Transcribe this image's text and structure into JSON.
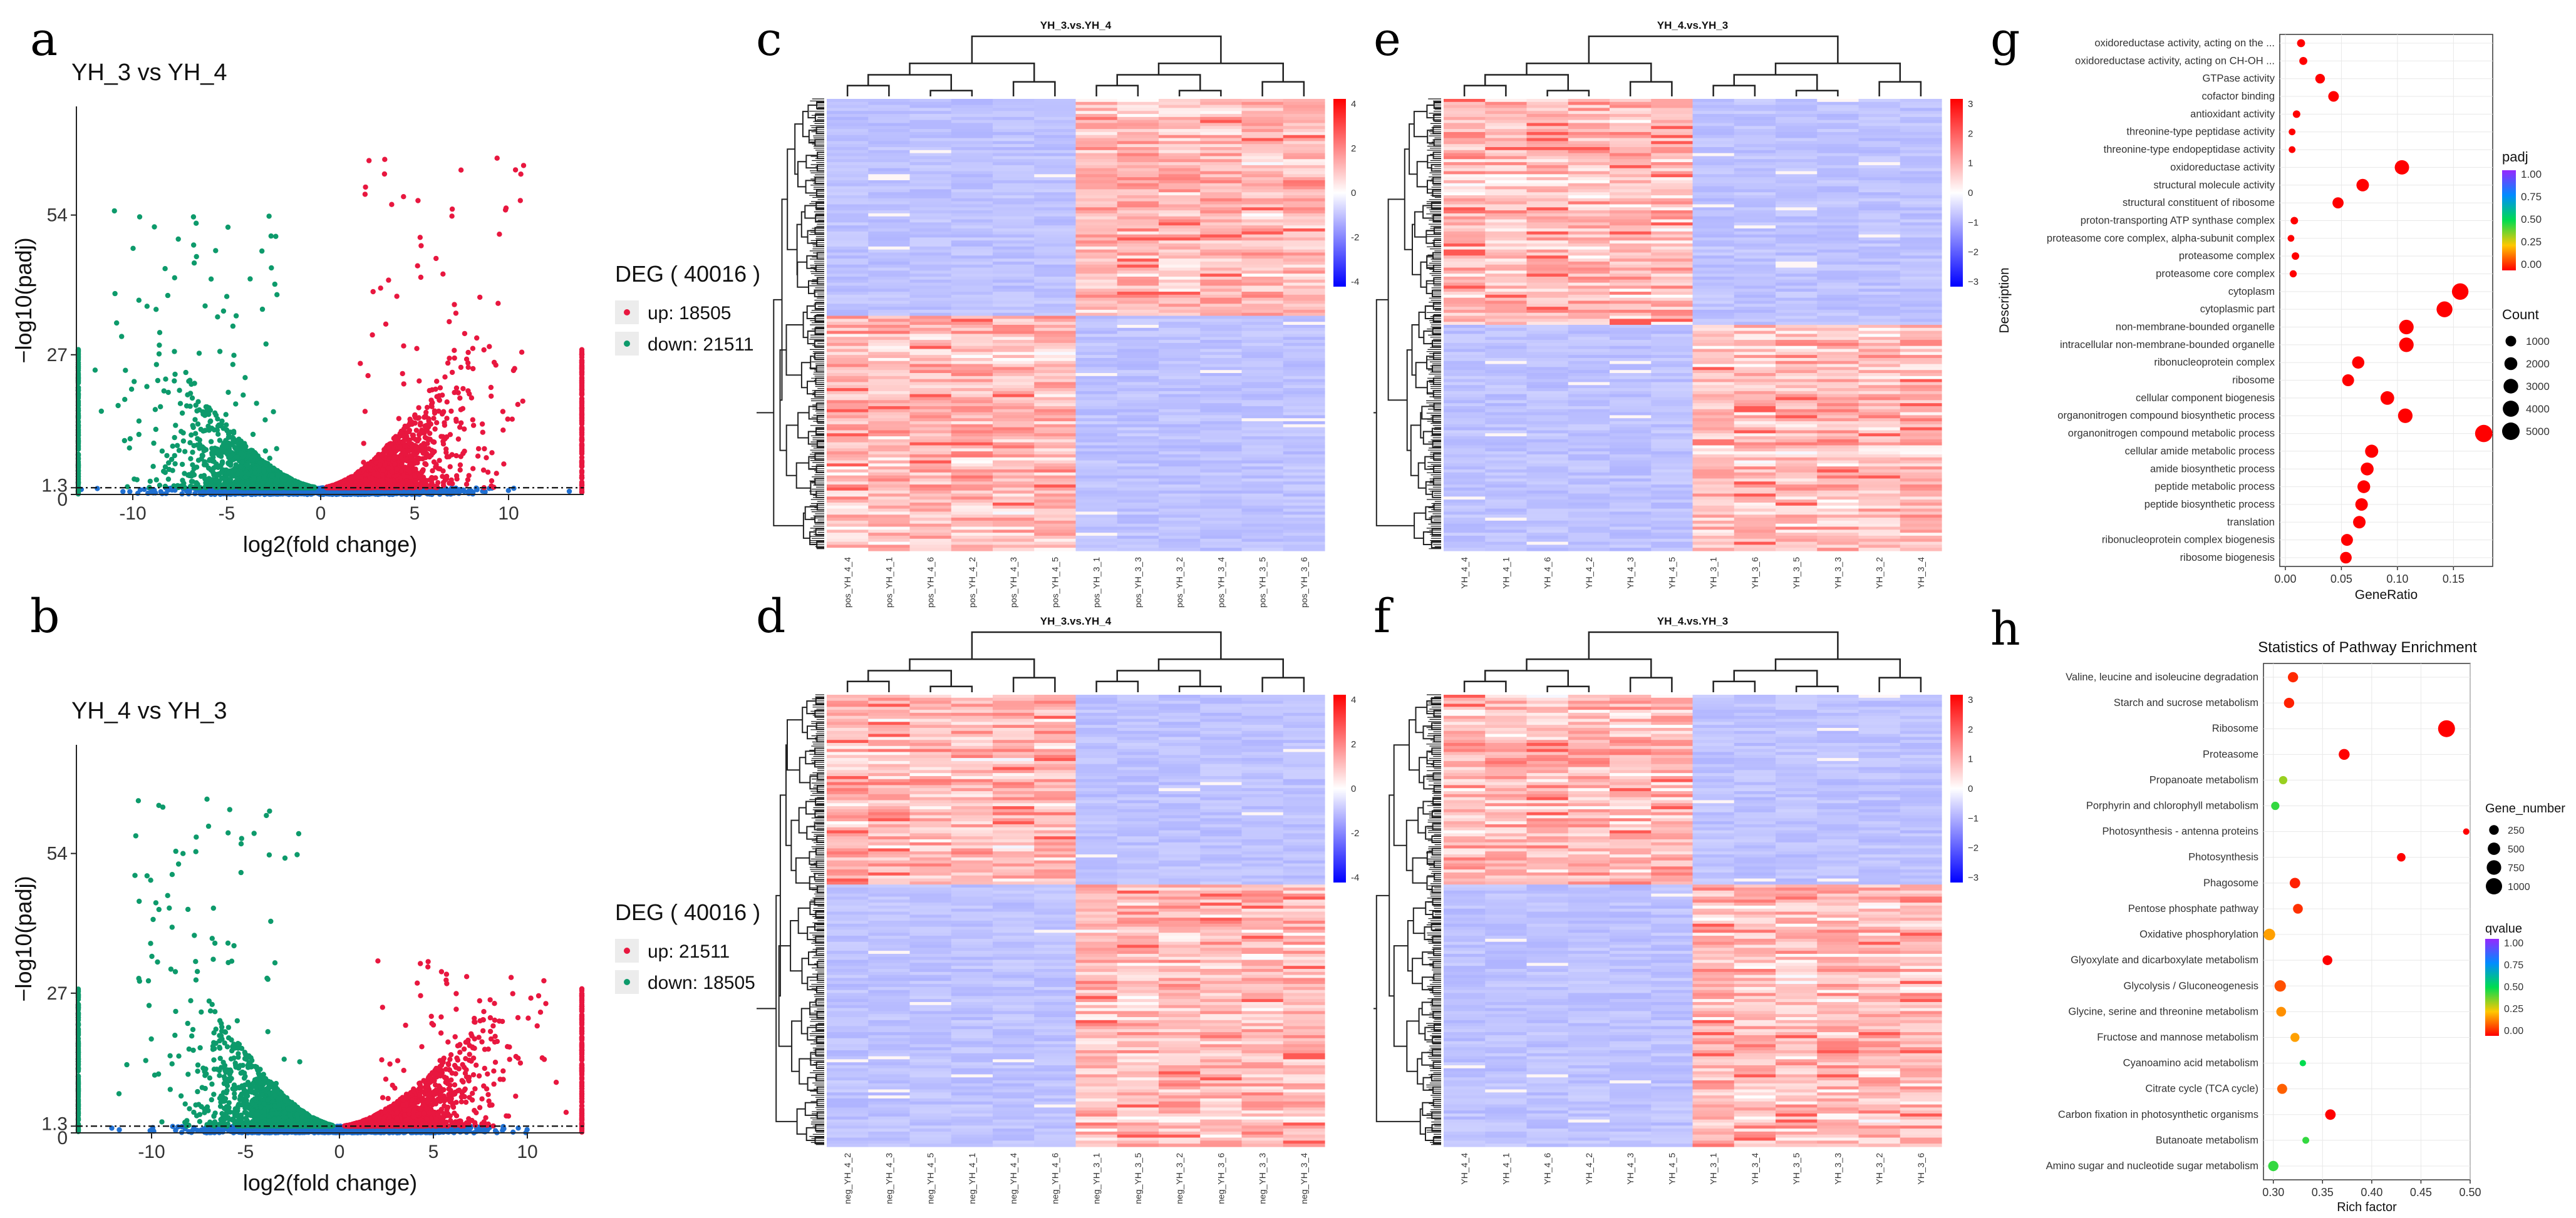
{
  "panels": {
    "a": {
      "letter": "a"
    },
    "b": {
      "letter": "b"
    },
    "c": {
      "letter": "c"
    },
    "d": {
      "letter": "d"
    },
    "e": {
      "letter": "e"
    },
    "f": {
      "letter": "f"
    },
    "g": {
      "letter": "g"
    },
    "h": {
      "letter": "h"
    }
  },
  "chart_data": [
    {
      "id": "volcano_a",
      "type": "scatter",
      "title": "YH_3 vs YH_4",
      "xlabel": "log2(fold change)",
      "ylabel": "−log10(padj)",
      "xlim": [
        -13,
        14
      ],
      "ylim": [
        0,
        75
      ],
      "x_ticks": [
        "-10",
        "-5",
        "0",
        "5",
        "10"
      ],
      "y_ticks": [
        "0",
        "1.3",
        "27",
        "54"
      ],
      "threshold_y": 1.3,
      "legend_title": "DEG ( 40016 )",
      "legend": [
        {
          "name": "up: 18505",
          "color": "#e8173f"
        },
        {
          "name": "down: 21511",
          "color": "#0d9a6b"
        }
      ],
      "colors": {
        "up": "#e8173f",
        "down": "#0d9a6b",
        "ns": "#1f6fd1"
      }
    },
    {
      "id": "volcano_b",
      "type": "scatter",
      "title": "YH_4 vs YH_3",
      "xlabel": "log2(fold change)",
      "ylabel": "−log10(padj)",
      "xlim": [
        -14,
        13
      ],
      "ylim": [
        0,
        75
      ],
      "x_ticks": [
        "-10",
        "-5",
        "0",
        "5",
        "10"
      ],
      "y_ticks": [
        "0",
        "1.3",
        "27",
        "54"
      ],
      "threshold_y": 1.3,
      "legend_title": "DEG ( 40016 )",
      "legend": [
        {
          "name": "up: 21511",
          "color": "#e8173f"
        },
        {
          "name": "down: 18505",
          "color": "#0d9a6b"
        }
      ],
      "colors": {
        "up": "#e8173f",
        "down": "#0d9a6b",
        "ns": "#1f6fd1"
      }
    },
    {
      "id": "heatmap_c",
      "type": "heatmap",
      "title": "YH_3.vs.YH_4",
      "columns": [
        "pos_YH_4_4",
        "pos_YH_4_1",
        "pos_YH_4_6",
        "pos_YH_4_2",
        "pos_YH_4_3",
        "pos_YH_4_5",
        "pos_YH_3_1",
        "pos_YH_3_3",
        "pos_YH_3_2",
        "pos_YH_3_4",
        "pos_YH_3_5",
        "pos_YH_3_6"
      ],
      "colorbar": {
        "ticks": [
          "4",
          "2",
          "0",
          "-2",
          "-4"
        ]
      },
      "blocks": [
        {
          "rows_frac": 0.48,
          "pattern": [
            "low",
            "low",
            "low",
            "low",
            "low",
            "low",
            "high",
            "high",
            "high",
            "high",
            "high",
            "high"
          ]
        },
        {
          "rows_frac": 0.52,
          "pattern": [
            "high",
            "high",
            "high",
            "high",
            "high",
            "high",
            "low",
            "low",
            "low",
            "low",
            "low",
            "low"
          ]
        }
      ]
    },
    {
      "id": "heatmap_d",
      "type": "heatmap",
      "title": "YH_3.vs.YH_4",
      "columns": [
        "neg_YH_4_2",
        "neg_YH_4_3",
        "neg_YH_4_5",
        "neg_YH_4_1",
        "neg_YH_4_4",
        "neg_YH_4_6",
        "neg_YH_3_1",
        "neg_YH_3_5",
        "neg_YH_3_2",
        "neg_YH_3_6",
        "neg_YH_3_3",
        "neg_YH_3_4"
      ],
      "colorbar": {
        "ticks": [
          "4",
          "2",
          "0",
          "-2",
          "-4"
        ]
      },
      "blocks": [
        {
          "rows_frac": 0.42,
          "pattern": [
            "high",
            "high",
            "high",
            "high",
            "high",
            "high",
            "low",
            "low",
            "low",
            "low",
            "low",
            "low"
          ]
        },
        {
          "rows_frac": 0.58,
          "pattern": [
            "low",
            "low",
            "low",
            "low",
            "low",
            "low",
            "high",
            "high",
            "high",
            "high",
            "high",
            "high"
          ]
        }
      ]
    },
    {
      "id": "heatmap_e",
      "type": "heatmap",
      "title": "YH_4.vs.YH_3",
      "columns": [
        "YH_4_4",
        "YH_4_1",
        "YH_4_6",
        "YH_4_2",
        "YH_4_3",
        "YH_4_5",
        "YH_3_1",
        "YH_3_6",
        "YH_3_5",
        "YH_3_3",
        "YH_3_2",
        "YH_3_4"
      ],
      "colorbar": {
        "ticks": [
          "3",
          "2",
          "1",
          "0",
          "−1",
          "−2",
          "−3"
        ]
      },
      "blocks": [
        {
          "rows_frac": 0.5,
          "pattern": [
            "high",
            "high",
            "high",
            "high",
            "high",
            "high",
            "low",
            "low",
            "low",
            "low",
            "low",
            "low"
          ]
        },
        {
          "rows_frac": 0.5,
          "pattern": [
            "low",
            "low",
            "low",
            "low",
            "low",
            "low",
            "high",
            "high",
            "high",
            "high",
            "high",
            "high"
          ]
        }
      ]
    },
    {
      "id": "heatmap_f",
      "type": "heatmap",
      "title": "YH_4.vs.YH_3",
      "columns": [
        "YH_4_4",
        "YH_4_1",
        "YH_4_6",
        "YH_4_2",
        "YH_4_3",
        "YH_4_5",
        "YH_3_1",
        "YH_3_4",
        "YH_3_5",
        "YH_3_3",
        "YH_3_2",
        "YH_3_6"
      ],
      "colorbar": {
        "ticks": [
          "3",
          "2",
          "1",
          "0",
          "−1",
          "−2",
          "−3"
        ]
      },
      "blocks": [
        {
          "rows_frac": 0.42,
          "pattern": [
            "high",
            "high",
            "high",
            "high",
            "high",
            "high",
            "low",
            "low",
            "low",
            "low",
            "low",
            "low"
          ]
        },
        {
          "rows_frac": 0.58,
          "pattern": [
            "low",
            "low",
            "low",
            "low",
            "low",
            "low",
            "high",
            "high",
            "high",
            "high",
            "high",
            "high"
          ]
        }
      ]
    },
    {
      "id": "go_dot_g",
      "type": "scatter",
      "xlabel": "GeneRatio",
      "ylabel": "Description",
      "xlim": [
        -0.005,
        0.185
      ],
      "x_ticks": [
        0.0,
        0.05,
        0.1,
        0.15
      ],
      "x_tick_labels": [
        "0.00",
        "0.05",
        "0.10",
        "0.15"
      ],
      "legend_color_title": "padj",
      "legend_color_ticks": [
        "1.00",
        "0.75",
        "0.50",
        "0.25",
        "0.00"
      ],
      "legend_size_title": "Count",
      "legend_size_ticks": [
        "1000",
        "2000",
        "3000",
        "4000",
        "5000"
      ],
      "points": [
        {
          "label": "oxidoreductase activity, acting on the ...",
          "x": 0.014,
          "count": 300,
          "padj": 0.0
        },
        {
          "label": "oxidoreductase activity, acting on CH-OH ...",
          "x": 0.016,
          "count": 300,
          "padj": 0.0
        },
        {
          "label": "GTPase activity",
          "x": 0.031,
          "count": 700,
          "padj": 0.0
        },
        {
          "label": "cofactor binding",
          "x": 0.043,
          "count": 1000,
          "padj": 0.0
        },
        {
          "label": "antioxidant activity",
          "x": 0.01,
          "count": 200,
          "padj": 0.0
        },
        {
          "label": "threonine-type peptidase activity",
          "x": 0.006,
          "count": 100,
          "padj": 0.0
        },
        {
          "label": "threonine-type endopeptidase activity",
          "x": 0.006,
          "count": 100,
          "padj": 0.0
        },
        {
          "label": "oxidoreductase activity",
          "x": 0.104,
          "count": 2800,
          "padj": 0.0
        },
        {
          "label": "structural molecule activity",
          "x": 0.069,
          "count": 1800,
          "padj": 0.0
        },
        {
          "label": "structural constituent of ribosome",
          "x": 0.047,
          "count": 1200,
          "padj": 0.0
        },
        {
          "label": "proton-transporting ATP synthase complex",
          "x": 0.008,
          "count": 200,
          "padj": 0.0
        },
        {
          "label": "proteasome core complex, alpha-subunit complex",
          "x": 0.005,
          "count": 100,
          "padj": 0.0
        },
        {
          "label": "proteasome complex",
          "x": 0.009,
          "count": 200,
          "padj": 0.0
        },
        {
          "label": "proteasome core complex",
          "x": 0.007,
          "count": 150,
          "padj": 0.0
        },
        {
          "label": "cytoplasm",
          "x": 0.156,
          "count": 4200,
          "padj": 0.0
        },
        {
          "label": "cytoplasmic part",
          "x": 0.142,
          "count": 3800,
          "padj": 0.0
        },
        {
          "label": "non-membrane-bounded organelle",
          "x": 0.108,
          "count": 2900,
          "padj": 0.0
        },
        {
          "label": "intracellular non-membrane-bounded organelle",
          "x": 0.108,
          "count": 2900,
          "padj": 0.0
        },
        {
          "label": "ribonucleoprotein complex",
          "x": 0.065,
          "count": 1700,
          "padj": 0.0
        },
        {
          "label": "ribosome",
          "x": 0.056,
          "count": 1500,
          "padj": 0.0
        },
        {
          "label": "cellular component biogenesis",
          "x": 0.091,
          "count": 2400,
          "padj": 0.0
        },
        {
          "label": "organonitrogen compound biosynthetic process",
          "x": 0.107,
          "count": 2900,
          "padj": 0.0
        },
        {
          "label": "organonitrogen compound metabolic process",
          "x": 0.177,
          "count": 4800,
          "padj": 0.0
        },
        {
          "label": "cellular amide metabolic process",
          "x": 0.077,
          "count": 2100,
          "padj": 0.0
        },
        {
          "label": "amide biosynthetic process",
          "x": 0.073,
          "count": 2000,
          "padj": 0.0
        },
        {
          "label": "peptide metabolic process",
          "x": 0.07,
          "count": 1900,
          "padj": 0.0
        },
        {
          "label": "peptide biosynthetic process",
          "x": 0.068,
          "count": 1800,
          "padj": 0.0
        },
        {
          "label": "translation",
          "x": 0.066,
          "count": 1800,
          "padj": 0.0
        },
        {
          "label": "ribonucleoprotein complex biogenesis",
          "x": 0.055,
          "count": 1500,
          "padj": 0.0
        },
        {
          "label": "ribosome biogenesis",
          "x": 0.054,
          "count": 1400,
          "padj": 0.0
        }
      ]
    },
    {
      "id": "kegg_dot_h",
      "type": "scatter",
      "title": "Statistics of Pathway Enrichment",
      "xlabel": "Rich factor",
      "xlim": [
        0.29,
        0.5
      ],
      "x_ticks": [
        0.3,
        0.35,
        0.4,
        0.45,
        0.5
      ],
      "x_tick_labels": [
        "0.30",
        "0.35",
        "0.40",
        "0.45",
        "0.50"
      ],
      "legend_size_title": "Gene_number",
      "legend_size_ticks": [
        "250",
        "500",
        "750",
        "1000"
      ],
      "legend_color_title": "qvalue",
      "legend_color_ticks": [
        "1.00",
        "0.75",
        "0.50",
        "0.25",
        "0.00"
      ],
      "points": [
        {
          "label": "Valine, leucine and isoleucine degradation",
          "x": 0.32,
          "genes": 300,
          "q": 0.05
        },
        {
          "label": "Starch and sucrose metabolism",
          "x": 0.316,
          "genes": 300,
          "q": 0.04
        },
        {
          "label": "Ribosome",
          "x": 0.476,
          "genes": 1100,
          "q": 0.0
        },
        {
          "label": "Proteasome",
          "x": 0.372,
          "genes": 350,
          "q": 0.0
        },
        {
          "label": "Propanoate metabolism",
          "x": 0.31,
          "genes": 150,
          "q": 0.35
        },
        {
          "label": "Porphyrin and chlorophyll metabolism",
          "x": 0.302,
          "genes": 150,
          "q": 0.45
        },
        {
          "label": "Photosynthesis - antenna proteins",
          "x": 0.496,
          "genes": 60,
          "q": 0.0
        },
        {
          "label": "Photosynthesis",
          "x": 0.43,
          "genes": 170,
          "q": 0.0
        },
        {
          "label": "Phagosome",
          "x": 0.322,
          "genes": 320,
          "q": 0.04
        },
        {
          "label": "Pentose phosphate pathway",
          "x": 0.325,
          "genes": 260,
          "q": 0.06
        },
        {
          "label": "Oxidative phosphorylation",
          "x": 0.296,
          "genes": 420,
          "q": 0.2
        },
        {
          "label": "Glyoxylate and dicarboxylate metabolism",
          "x": 0.355,
          "genes": 260,
          "q": 0.0
        },
        {
          "label": "Glycolysis / Gluconeogenesis",
          "x": 0.307,
          "genes": 400,
          "q": 0.1
        },
        {
          "label": "Glycine, serine and threonine metabolism",
          "x": 0.308,
          "genes": 260,
          "q": 0.18
        },
        {
          "label": "Fructose and mannose metabolism",
          "x": 0.322,
          "genes": 200,
          "q": 0.2
        },
        {
          "label": "Cyanoamino acid metabolism",
          "x": 0.33,
          "genes": 60,
          "q": 0.5
        },
        {
          "label": "Citrate cycle (TCA cycle)",
          "x": 0.309,
          "genes": 280,
          "q": 0.12
        },
        {
          "label": "Carbon fixation in photosynthetic organisms",
          "x": 0.358,
          "genes": 320,
          "q": 0.0
        },
        {
          "label": "Butanoate metabolism",
          "x": 0.333,
          "genes": 80,
          "q": 0.45
        },
        {
          "label": "Amino sugar and nucleotide sugar metabolism",
          "x": 0.3,
          "genes": 300,
          "q": 0.45
        }
      ]
    }
  ]
}
